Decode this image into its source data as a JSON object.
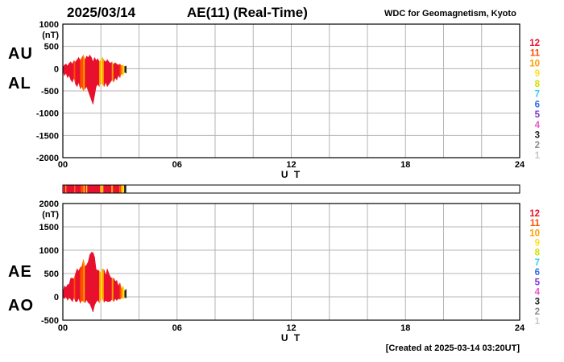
{
  "header": {
    "date": "2025/03/14",
    "title": "AE(11) (Real-Time)",
    "source": "WDC for Geomagnetism, Kyoto"
  },
  "footer": {
    "created": "[Created at 2025-03-14 03:20UT]"
  },
  "legend": {
    "counts": [
      12,
      11,
      10,
      9,
      8,
      7,
      6,
      5,
      4,
      3,
      2,
      1
    ],
    "colors": {
      "12": "#e8112d",
      "11": "#ff4e00",
      "10": "#ff9e00",
      "9": "#ffdf1e",
      "8": "#cfe000",
      "7": "#2fd0e8",
      "6": "#2f6fe8",
      "5": "#8033cc",
      "4": "#ee55cc",
      "3": "#222222",
      "2": "#8c8c8c",
      "1": "#c8c8c8"
    }
  },
  "station_bands": [
    {
      "start": 0.0,
      "end": 0.13,
      "count": 12
    },
    {
      "start": 0.13,
      "end": 0.18,
      "count": 10
    },
    {
      "start": 0.18,
      "end": 0.6,
      "count": 12
    },
    {
      "start": 0.6,
      "end": 0.65,
      "count": 11
    },
    {
      "start": 0.65,
      "end": 0.95,
      "count": 12
    },
    {
      "start": 0.95,
      "end": 1.08,
      "count": 11
    },
    {
      "start": 1.08,
      "end": 1.17,
      "count": 10
    },
    {
      "start": 1.17,
      "end": 1.23,
      "count": 12
    },
    {
      "start": 1.23,
      "end": 1.28,
      "count": 9
    },
    {
      "start": 1.28,
      "end": 1.95,
      "count": 12
    },
    {
      "start": 1.95,
      "end": 2.03,
      "count": 10
    },
    {
      "start": 2.03,
      "end": 2.08,
      "count": 9
    },
    {
      "start": 2.08,
      "end": 2.13,
      "count": 10
    },
    {
      "start": 2.13,
      "end": 2.55,
      "count": 12
    },
    {
      "start": 2.55,
      "end": 2.63,
      "count": 10
    },
    {
      "start": 2.63,
      "end": 2.97,
      "count": 12
    },
    {
      "start": 2.97,
      "end": 3.05,
      "count": 11
    },
    {
      "start": 3.05,
      "end": 3.13,
      "count": 10
    },
    {
      "start": 3.13,
      "end": 3.22,
      "count": 9
    },
    {
      "start": 3.22,
      "end": 3.33,
      "count": 3
    }
  ],
  "chart_data": [
    {
      "type": "area",
      "panel": "AU-AL",
      "left_labels": [
        "AU",
        "AL"
      ],
      "ylabel": "(nT)",
      "ylim": [
        -2000,
        1000
      ],
      "yticks": [
        1000,
        500,
        0,
        -500,
        -1000,
        -1500,
        -2000
      ],
      "xlabel": "U T",
      "xlim": [
        0,
        24
      ],
      "xticks": [
        0,
        6,
        12,
        18,
        24
      ],
      "xtick_labels": [
        "00",
        "06",
        "12",
        "18",
        "24"
      ],
      "grid_x_step": 2,
      "x_hours": [
        0,
        0.083,
        0.167,
        0.25,
        0.333,
        0.417,
        0.5,
        0.583,
        0.667,
        0.75,
        0.833,
        0.917,
        1,
        1.083,
        1.167,
        1.25,
        1.333,
        1.417,
        1.5,
        1.583,
        1.667,
        1.75,
        1.833,
        1.917,
        2,
        2.083,
        2.167,
        2.25,
        2.333,
        2.417,
        2.5,
        2.583,
        2.667,
        2.75,
        2.833,
        2.917,
        3,
        3.083,
        3.167,
        3.25,
        3.333
      ],
      "series": [
        {
          "name": "AU",
          "values": [
            30,
            80,
            100,
            60,
            120,
            150,
            100,
            180,
            150,
            200,
            250,
            180,
            250,
            300,
            200,
            280,
            250,
            300,
            250,
            150,
            250,
            180,
            220,
            150,
            200,
            250,
            180,
            150,
            200,
            150,
            120,
            150,
            100,
            130,
            100,
            80,
            100,
            60,
            80,
            50,
            60
          ]
        },
        {
          "name": "AL",
          "values": [
            -50,
            -150,
            -100,
            -200,
            -150,
            -250,
            -300,
            -200,
            -350,
            -400,
            -300,
            -450,
            -400,
            -500,
            -450,
            -400,
            -500,
            -600,
            -700,
            -800,
            -600,
            -400,
            -350,
            -400,
            -300,
            -350,
            -400,
            -300,
            -400,
            -350,
            -300,
            -250,
            -300,
            -200,
            -250,
            -150,
            -200,
            -100,
            -150,
            -80,
            -100
          ]
        }
      ]
    },
    {
      "type": "area",
      "panel": "AE-AO",
      "left_labels": [
        "AE",
        "AO"
      ],
      "ylabel": "(nT)",
      "ylim": [
        -500,
        2000
      ],
      "yticks": [
        2000,
        1500,
        1000,
        500,
        0,
        -500
      ],
      "xlabel": "U T",
      "xlim": [
        0,
        24
      ],
      "xticks": [
        0,
        6,
        12,
        18,
        24
      ],
      "xtick_labels": [
        "00",
        "06",
        "12",
        "18",
        "24"
      ],
      "grid_x_step": 2,
      "x_hours": [
        0,
        0.083,
        0.167,
        0.25,
        0.333,
        0.417,
        0.5,
        0.583,
        0.667,
        0.75,
        0.833,
        0.917,
        1,
        1.083,
        1.167,
        1.25,
        1.333,
        1.417,
        1.5,
        1.583,
        1.667,
        1.75,
        1.833,
        1.917,
        2,
        2.083,
        2.167,
        2.25,
        2.333,
        2.417,
        2.5,
        2.583,
        2.667,
        2.75,
        2.833,
        2.917,
        3,
        3.083,
        3.167,
        3.25,
        3.333
      ],
      "series": [
        {
          "name": "AE",
          "values": [
            80,
            230,
            200,
            260,
            270,
            400,
            400,
            380,
            500,
            600,
            550,
            630,
            650,
            800,
            650,
            680,
            750,
            900,
            950,
            950,
            850,
            580,
            570,
            550,
            500,
            600,
            580,
            450,
            600,
            500,
            420,
            400,
            400,
            330,
            350,
            230,
            300,
            160,
            230,
            130,
            160
          ]
        },
        {
          "name": "AO",
          "values": [
            -10,
            -35,
            0,
            -70,
            -15,
            -50,
            -100,
            -10,
            -100,
            -100,
            -25,
            -135,
            -75,
            -100,
            -125,
            -60,
            -125,
            -150,
            -225,
            -325,
            -175,
            -110,
            -65,
            -125,
            -50,
            -50,
            -110,
            -75,
            -100,
            -100,
            -90,
            -50,
            -100,
            -35,
            -75,
            -35,
            -50,
            -20,
            -35,
            -15,
            -20
          ]
        }
      ]
    }
  ]
}
